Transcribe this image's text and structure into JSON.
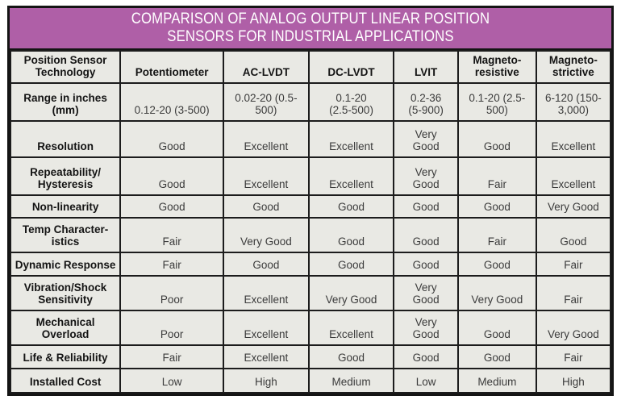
{
  "banner": {
    "title_lines": [
      "COMPARISON OF ANALOG OUTPUT LINEAR POSITION",
      "SENSORS FOR INDUSTRIAL APPLICATIONS"
    ]
  },
  "colors": {
    "banner_purple": "#af5fa7",
    "cell_background": "#e9e9e4",
    "grid_line": "#1c1c1c",
    "header_text": "#141414",
    "value_text": "#3b3b3b",
    "banner_text": "#ffffff"
  },
  "chart_data": {
    "type": "table",
    "title": "COMPARISON OF ANALOG OUTPUT LINEAR POSITION SENSORS FOR INDUSTRIAL APPLICATIONS",
    "columns": [
      "Position Sensor\nTechnology",
      "Potentiometer",
      "AC-LVDT",
      "DC-LVDT",
      "LVIT",
      "Magneto-\nresistive",
      "Magneto-\nstrictive"
    ],
    "rows": [
      {
        "label": "Range in inches\n(mm)",
        "values": [
          "0.12-20 (3-500)",
          "0.02-20 (0.5-\n500)",
          "0.1-20\n(2.5-500)",
          "0.2-36\n(5-900)",
          "0.1-20 (2.5-\n500)",
          "6-120 (150-\n3,000)"
        ]
      },
      {
        "label": "Resolution",
        "values": [
          "Good",
          "Excellent",
          "Excellent",
          "Very\nGood",
          "Good",
          "Excellent"
        ]
      },
      {
        "label": "Repeatability/\nHysteresis",
        "values": [
          "Good",
          "Excellent",
          "Excellent",
          "Very\nGood",
          "Fair",
          "Excellent"
        ]
      },
      {
        "label": "Non-linearity",
        "values": [
          "Good",
          "Good",
          "Good",
          "Good",
          "Good",
          "Very Good"
        ]
      },
      {
        "label": "Temp Character-\nistics",
        "values": [
          "Fair",
          "Very Good",
          "Good",
          "Good",
          "Fair",
          "Good"
        ]
      },
      {
        "label": "Dynamic Response",
        "values": [
          "Fair",
          "Good",
          "Good",
          "Good",
          "Good",
          "Fair"
        ]
      },
      {
        "label": "Vibration/Shock\nSensitivity",
        "values": [
          "Poor",
          "Excellent",
          "Very Good",
          "Very\nGood",
          "Very Good",
          "Fair"
        ]
      },
      {
        "label": "Mechanical\nOverload",
        "values": [
          "Poor",
          "Excellent",
          "Excellent",
          "Very\nGood",
          "Good",
          "Very Good"
        ]
      },
      {
        "label": "Life & Reliability",
        "values": [
          "Fair",
          "Excellent",
          "Good",
          "Good",
          "Good",
          "Fair"
        ]
      },
      {
        "label": "Installed Cost",
        "values": [
          "Low",
          "High",
          "Medium",
          "Low",
          "Medium",
          "High"
        ]
      }
    ],
    "layout_hints": {
      "column_width_percents": [
        18.3,
        17.2,
        14.2,
        14.2,
        10.7,
        13.0,
        12.4
      ],
      "grid": "on",
      "header_fill": "#af5fa7"
    }
  }
}
